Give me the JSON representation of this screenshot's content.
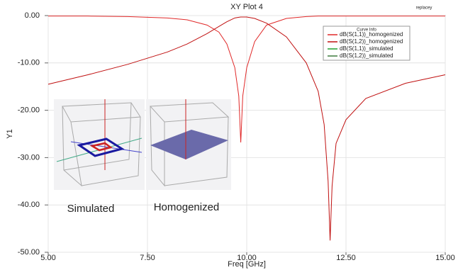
{
  "chart_data": {
    "type": "line",
    "title": "XY Plot 4",
    "corner_label": "replacey",
    "x_label": "Freq [GHz]",
    "y_label": "Y1",
    "legend_title": "Curve Info",
    "inset_labels": [
      "Simulated",
      "Homogenized"
    ],
    "x": [
      5,
      6,
      7,
      8,
      8.5,
      9,
      9.3,
      9.5,
      9.7,
      9.8,
      9.85,
      9.9,
      10,
      10.2,
      10.5,
      11,
      11.5,
      11.8,
      11.95,
      12.05,
      12.1,
      12.15,
      12.25,
      12.5,
      13,
      14,
      15
    ],
    "series": [
      {
        "name": "dB(S(1,1))_homogenized",
        "color": "#e02828",
        "values": [
          -0.1,
          -0.1,
          -0.2,
          -0.5,
          -0.9,
          -2,
          -3.5,
          -6,
          -11,
          -17,
          -26.8,
          -17,
          -11,
          -5.5,
          -2,
          -0.6,
          -0.2,
          -0.1,
          -0.1,
          -0.1,
          -0.1,
          -0.1,
          -0.1,
          -0.1,
          -0.1,
          -0.1,
          -0.1
        ]
      },
      {
        "name": "dB(S(1,2))_homogenized",
        "color": "#c01010",
        "values": [
          -14.5,
          -12.5,
          -10.3,
          -7.7,
          -6,
          -3.8,
          -2.3,
          -1.3,
          -0.5,
          -0.35,
          -0.3,
          -0.3,
          -0.3,
          -0.6,
          -1.6,
          -4.5,
          -10,
          -16,
          -23,
          -35,
          -47.5,
          -36,
          -27,
          -22,
          -17.5,
          -14.3,
          -12.5
        ]
      },
      {
        "name": "dB(S(1,1))_simulated",
        "color": "#20a030",
        "values": [
          null,
          null,
          null,
          null,
          null,
          null,
          null,
          null,
          null,
          null,
          null,
          null,
          null,
          null,
          null,
          null,
          null,
          null,
          null,
          null,
          null,
          null,
          null,
          null,
          null,
          null,
          null
        ]
      },
      {
        "name": "dB(S(1,2))_simulated",
        "color": "#3c7a3c",
        "values": [
          null,
          null,
          null,
          null,
          null,
          null,
          null,
          null,
          null,
          null,
          null,
          null,
          null,
          null,
          null,
          null,
          null,
          null,
          null,
          null,
          null,
          null,
          null,
          null,
          null,
          null,
          null
        ]
      }
    ],
    "xlim": [
      5,
      15
    ],
    "xticks": [
      {
        "value": 5,
        "label": "5.00"
      },
      {
        "value": 7.5,
        "label": "7.50"
      },
      {
        "value": 10,
        "label": "10.00"
      },
      {
        "value": 12.5,
        "label": "12.50"
      },
      {
        "value": 15,
        "label": "15.00"
      }
    ],
    "ylim": [
      -50,
      0
    ],
    "yticks": [
      {
        "value": 0,
        "label": "0.00"
      },
      {
        "value": -10,
        "label": "-10.00"
      },
      {
        "value": -20,
        "label": "-20.00"
      },
      {
        "value": -30,
        "label": "-30.00"
      },
      {
        "value": -40,
        "label": "-40.00"
      },
      {
        "value": -50,
        "label": "-50.00"
      }
    ],
    "grid": true
  }
}
